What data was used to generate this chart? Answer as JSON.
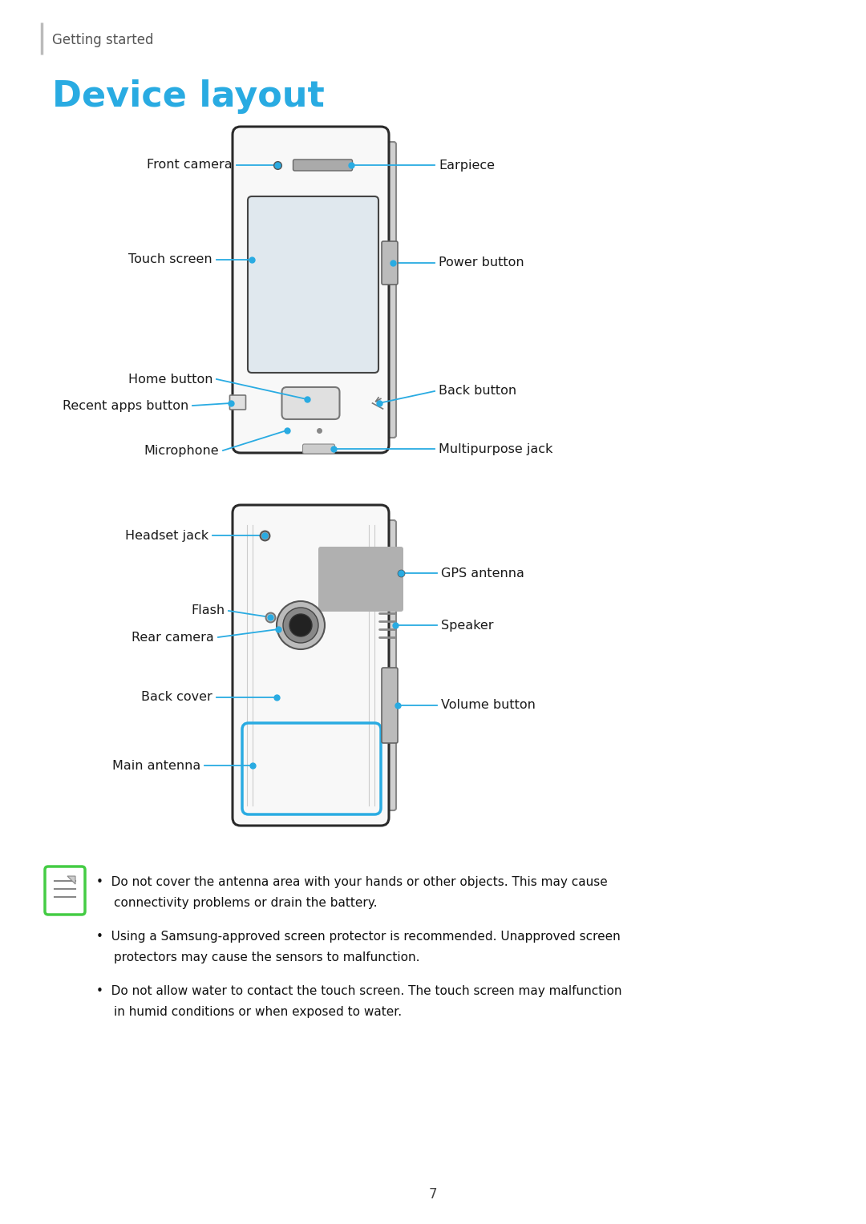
{
  "bg_color": "#ffffff",
  "page_num": "7",
  "header_text": "Getting started",
  "title": "Device layout",
  "title_color": "#29abe2",
  "title_fontsize": 32,
  "header_fontsize": 12,
  "label_color": "#1a1a1a",
  "line_color": "#29abe2",
  "label_fontsize": 11.5,
  "note_fontsize": 11,
  "notes_line1a": "Do not cover the antenna area with your hands or other objects. This may cause",
  "notes_line1b": "connectivity problems or drain the battery.",
  "notes_line2a": "Using a Samsung-approved screen protector is recommended. Unapproved screen",
  "notes_line2b": "protectors may cause the sensors to malfunction.",
  "notes_line3a": "Do not allow water to contact the touch screen. The touch screen may malfunction",
  "notes_line3b": "in humid conditions or when exposed to water."
}
